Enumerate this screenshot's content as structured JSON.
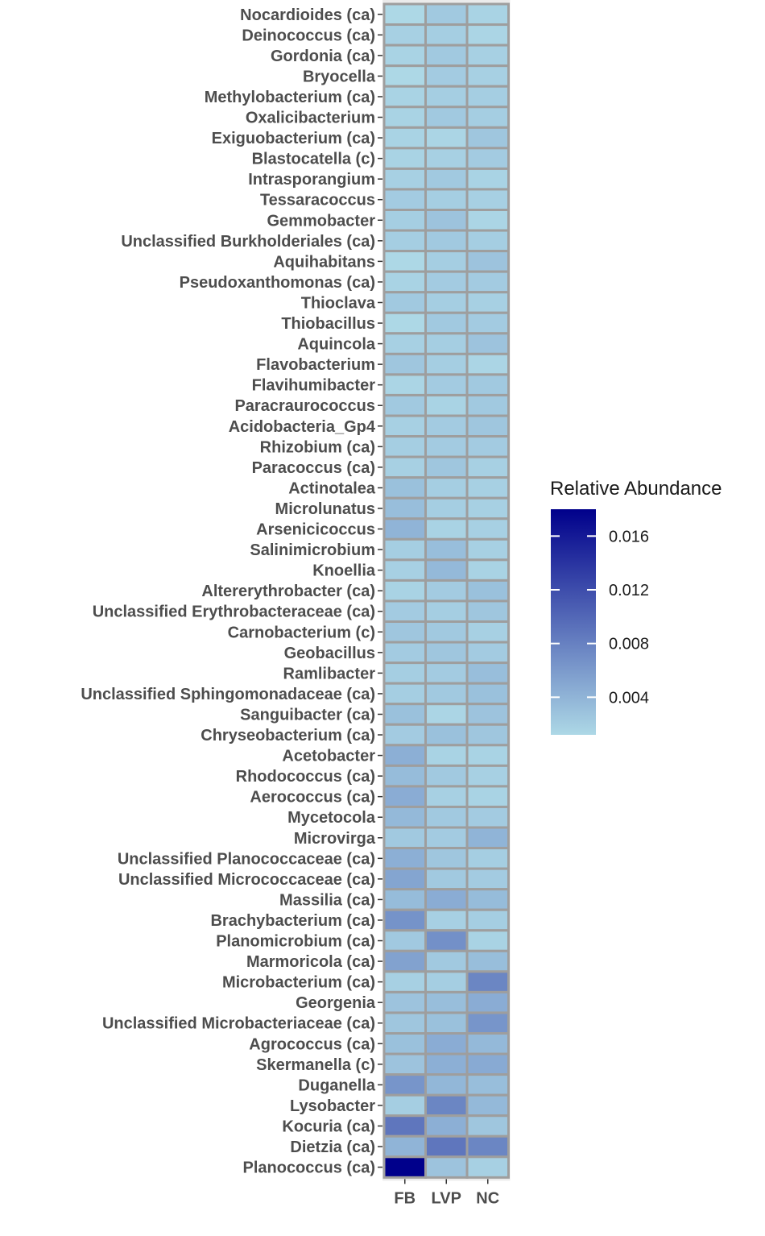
{
  "chart_data": {
    "type": "heatmap",
    "columns": [
      "FB",
      "LVP",
      "NC"
    ],
    "rows": [
      "Nocardioides (ca)",
      "Deinococcus (ca)",
      "Gordonia (ca)",
      "Bryocella",
      "Methylobacterium (ca)",
      "Oxalicibacterium",
      "Exiguobacterium (ca)",
      "Blastocatella (c)",
      "Intrasporangium",
      "Tessaracoccus",
      "Gemmobacter",
      "Unclassified Burkholderiales (ca)",
      "Aquihabitans",
      "Pseudoxanthomonas (ca)",
      "Thioclava",
      "Thiobacillus",
      "Aquincola",
      "Flavobacterium",
      "Flavihumibacter",
      "Paracraurococcus",
      "Acidobacteria_Gp4",
      "Rhizobium (ca)",
      "Paracoccus (ca)",
      "Actinotalea",
      "Microlunatus",
      "Arsenicicoccus",
      "Salinimicrobium",
      "Knoellia",
      "Altererythrobacter (ca)",
      "Unclassified Erythrobacteraceae (ca)",
      "Carnobacterium (c)",
      "Geobacillus",
      "Ramlibacter",
      "Unclassified Sphingomonadaceae (ca)",
      "Sanguibacter (ca)",
      "Chryseobacterium (ca)",
      "Acetobacter",
      "Rhodococcus (ca)",
      "Aerococcus (ca)",
      "Mycetocola",
      "Microvirga",
      "Unclassified Planococcaceae (ca)",
      "Unclassified Micrococcaceae (ca)",
      "Massilia (ca)",
      "Brachybacterium (ca)",
      "Planomicrobium (ca)",
      "Marmoricola (ca)",
      "Microbacterium (ca)",
      "Georgenia",
      "Unclassified Microbacteriaceae (ca)",
      "Agrococcus (ca)",
      "Skermanella (c)",
      "Duganella",
      "Lysobacter",
      "Kocuria (ca)",
      "Dietzia (ca)",
      "Planococcus (ca)"
    ],
    "values": [
      [
        0.0012,
        0.0024,
        0.0016
      ],
      [
        0.0018,
        0.002,
        0.0014
      ],
      [
        0.0016,
        0.0024,
        0.0018
      ],
      [
        0.0012,
        0.0022,
        0.0018
      ],
      [
        0.0016,
        0.002,
        0.002
      ],
      [
        0.0016,
        0.0024,
        0.002
      ],
      [
        0.0016,
        0.0014,
        0.0026
      ],
      [
        0.0016,
        0.0018,
        0.0022
      ],
      [
        0.0018,
        0.0024,
        0.0016
      ],
      [
        0.0022,
        0.002,
        0.0018
      ],
      [
        0.002,
        0.0028,
        0.0014
      ],
      [
        0.002,
        0.0024,
        0.002
      ],
      [
        0.0012,
        0.002,
        0.0028
      ],
      [
        0.0016,
        0.0022,
        0.0022
      ],
      [
        0.0024,
        0.002,
        0.0018
      ],
      [
        0.0012,
        0.0024,
        0.0022
      ],
      [
        0.0018,
        0.002,
        0.0028
      ],
      [
        0.0026,
        0.002,
        0.0014
      ],
      [
        0.0014,
        0.0022,
        0.0024
      ],
      [
        0.0024,
        0.0016,
        0.0024
      ],
      [
        0.0018,
        0.0022,
        0.0026
      ],
      [
        0.002,
        0.0022,
        0.0022
      ],
      [
        0.0018,
        0.0026,
        0.0018
      ],
      [
        0.003,
        0.002,
        0.0018
      ],
      [
        0.0032,
        0.002,
        0.0018
      ],
      [
        0.004,
        0.0016,
        0.0018
      ],
      [
        0.002,
        0.0032,
        0.0018
      ],
      [
        0.0018,
        0.0036,
        0.0016
      ],
      [
        0.0016,
        0.0022,
        0.003
      ],
      [
        0.0022,
        0.002,
        0.0026
      ],
      [
        0.0026,
        0.0024,
        0.0018
      ],
      [
        0.0022,
        0.0026,
        0.0022
      ],
      [
        0.002,
        0.0022,
        0.0032
      ],
      [
        0.002,
        0.0024,
        0.003
      ],
      [
        0.003,
        0.0014,
        0.0028
      ],
      [
        0.0022,
        0.003,
        0.0026
      ],
      [
        0.0044,
        0.0016,
        0.0016
      ],
      [
        0.0034,
        0.0024,
        0.0018
      ],
      [
        0.0046,
        0.0018,
        0.0016
      ],
      [
        0.0036,
        0.0024,
        0.0022
      ],
      [
        0.0024,
        0.0022,
        0.004
      ],
      [
        0.0044,
        0.0026,
        0.002
      ],
      [
        0.0052,
        0.0024,
        0.0022
      ],
      [
        0.0034,
        0.0046,
        0.0034
      ],
      [
        0.0066,
        0.0018,
        0.002
      ],
      [
        0.0024,
        0.0068,
        0.0016
      ],
      [
        0.0054,
        0.0024,
        0.0032
      ],
      [
        0.0018,
        0.002,
        0.0076
      ],
      [
        0.0028,
        0.0032,
        0.0046
      ],
      [
        0.0026,
        0.003,
        0.0064
      ],
      [
        0.003,
        0.0046,
        0.0036
      ],
      [
        0.0028,
        0.0044,
        0.0048
      ],
      [
        0.0064,
        0.0038,
        0.0032
      ],
      [
        0.002,
        0.0076,
        0.0036
      ],
      [
        0.0088,
        0.0044,
        0.0026
      ],
      [
        0.004,
        0.0088,
        0.0076
      ],
      [
        0.018,
        0.0028,
        0.0018
      ]
    ],
    "legend": {
      "title": "Relative Abundance",
      "ticks": [
        0.016,
        0.012,
        0.008,
        0.004
      ],
      "tick_labels": [
        "0.016",
        "0.012",
        "0.008",
        "0.004"
      ],
      "range": [
        0.0012,
        0.018
      ],
      "low_color": "#add8e6",
      "high_color": "#00008b",
      "placement": "right"
    },
    "tile_border_color": "#9e9e9e"
  }
}
